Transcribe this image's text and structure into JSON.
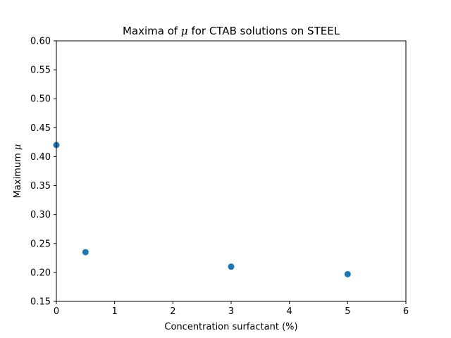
{
  "chart_data": {
    "type": "scatter",
    "title": {
      "prefix": "Maxima of ",
      "symbol": "μ",
      "suffix": " for CTAB solutions on STEEL"
    },
    "xlabel": "Concentration surfactant (%)",
    "ylabel": {
      "prefix": "Maximum ",
      "symbol": "μ"
    },
    "xlim": [
      0,
      6
    ],
    "ylim": [
      0.15,
      0.6
    ],
    "x_ticks": [
      0,
      1,
      2,
      3,
      4,
      5,
      6
    ],
    "y_ticks": [
      0.15,
      0.2,
      0.25,
      0.3,
      0.35,
      0.4,
      0.45,
      0.5,
      0.55,
      0.6
    ],
    "x_tick_labels": [
      "0",
      "1",
      "2",
      "3",
      "4",
      "5",
      "6"
    ],
    "y_tick_labels": [
      "0.15",
      "0.20",
      "0.25",
      "0.30",
      "0.35",
      "0.40",
      "0.45",
      "0.50",
      "0.55",
      "0.60"
    ],
    "grid": false,
    "legend": "none",
    "series": [
      {
        "color": "#1f77b4",
        "points": [
          {
            "x": 0.0,
            "y": 0.42
          },
          {
            "x": 0.5,
            "y": 0.235
          },
          {
            "x": 3.0,
            "y": 0.21
          },
          {
            "x": 5.0,
            "y": 0.197
          }
        ]
      }
    ]
  }
}
